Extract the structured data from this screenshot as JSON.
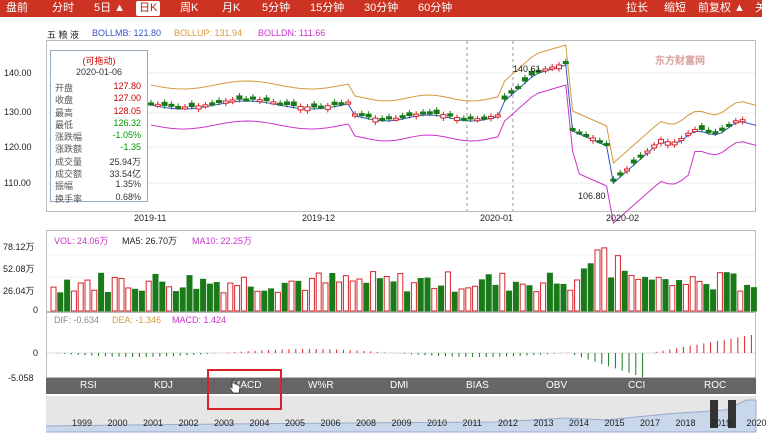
{
  "toolbar": {
    "items": [
      {
        "label": "盘前"
      },
      {
        "label": "分时"
      },
      {
        "label": "5日 ▲"
      },
      {
        "label": "日K"
      },
      {
        "label": "周K"
      },
      {
        "label": "月K"
      },
      {
        "label": "5分钟"
      },
      {
        "label": "15分钟"
      },
      {
        "label": "30分钟"
      },
      {
        "label": "60分钟"
      }
    ],
    "right": [
      {
        "label": "拉长"
      },
      {
        "label": "缩短"
      },
      {
        "label": "前复权 ▲"
      },
      {
        "label": "关"
      }
    ],
    "active_index": 3
  },
  "price_panel": {
    "stock_name": "五 粮 液",
    "legend": [
      {
        "text": "BOLLMB: 121.80",
        "color": "#3355cc"
      },
      {
        "text": "BOLLUP: 131.94",
        "color": "#d49a3a"
      },
      {
        "text": "BOLLDN: 111.66",
        "color": "#cc33cc"
      }
    ],
    "yticks": [
      "140.00",
      "130.00",
      "120.00",
      "110.00"
    ],
    "xticks": [
      "2019-11",
      "2019-12",
      "2020-01",
      "2020-02"
    ],
    "annotations": {
      "high": "140.61",
      "low": "106.80"
    },
    "watermark": "东方财富网"
  },
  "tooltip": {
    "header": "(可拖动)",
    "date": "2020-01-06",
    "rows": [
      {
        "k": "开盘",
        "v": "127.80",
        "c": "#c00"
      },
      {
        "k": "收盘",
        "v": "127.00",
        "c": "#c00"
      },
      {
        "k": "最高",
        "v": "128.05",
        "c": "#c00"
      },
      {
        "k": "最低",
        "v": "126.32",
        "c": "#090"
      },
      {
        "k": "涨跌幅",
        "v": "-1.05%",
        "c": "#090"
      },
      {
        "k": "涨跌额",
        "v": "-1.35",
        "c": "#090"
      },
      {
        "k": "成交量",
        "v": "25.94万",
        "c": "#333"
      },
      {
        "k": "成交额",
        "v": "33.54亿",
        "c": "#333"
      },
      {
        "k": "振幅",
        "v": "1.35%",
        "c": "#333"
      },
      {
        "k": "换手率",
        "v": "0.68%",
        "c": "#333"
      }
    ]
  },
  "volume_panel": {
    "legend": [
      {
        "text": "VOL: 24.06万",
        "color": "#cc33cc"
      },
      {
        "text": "MA5: 26.70万",
        "color": "#222222"
      },
      {
        "text": "MA10: 22.25万",
        "color": "#cc33cc"
      }
    ],
    "yticks": [
      "78.12万",
      "52.08万",
      "26.04万",
      "0"
    ]
  },
  "macd_panel": {
    "legend": [
      {
        "text": "DIF: -0.634",
        "color": "#888888"
      },
      {
        "text": "DEA: -1.346",
        "color": "#d49a3a"
      },
      {
        "text": "MACD: 1.424",
        "color": "#cc33cc"
      }
    ],
    "yticks": [
      "0",
      "-5.058"
    ]
  },
  "indicator_tabs": [
    "RSI",
    "KDJ",
    "MACD",
    "W%R",
    "DMI",
    "BIAS",
    "OBV",
    "CCI",
    "ROC"
  ],
  "timeline_years": [
    "1999",
    "2000",
    "2001",
    "2002",
    "2003",
    "2004",
    "2005",
    "2006",
    "2008",
    "2009",
    "2010",
    "2011",
    "2012",
    "2013",
    "2014",
    "2015",
    "2017",
    "2018",
    "2019",
    "2020"
  ],
  "colors": {
    "up": "#d8232a",
    "down": "#1a7a1a",
    "toolbar": "#cc3322",
    "highlight": "#d8232a"
  }
}
